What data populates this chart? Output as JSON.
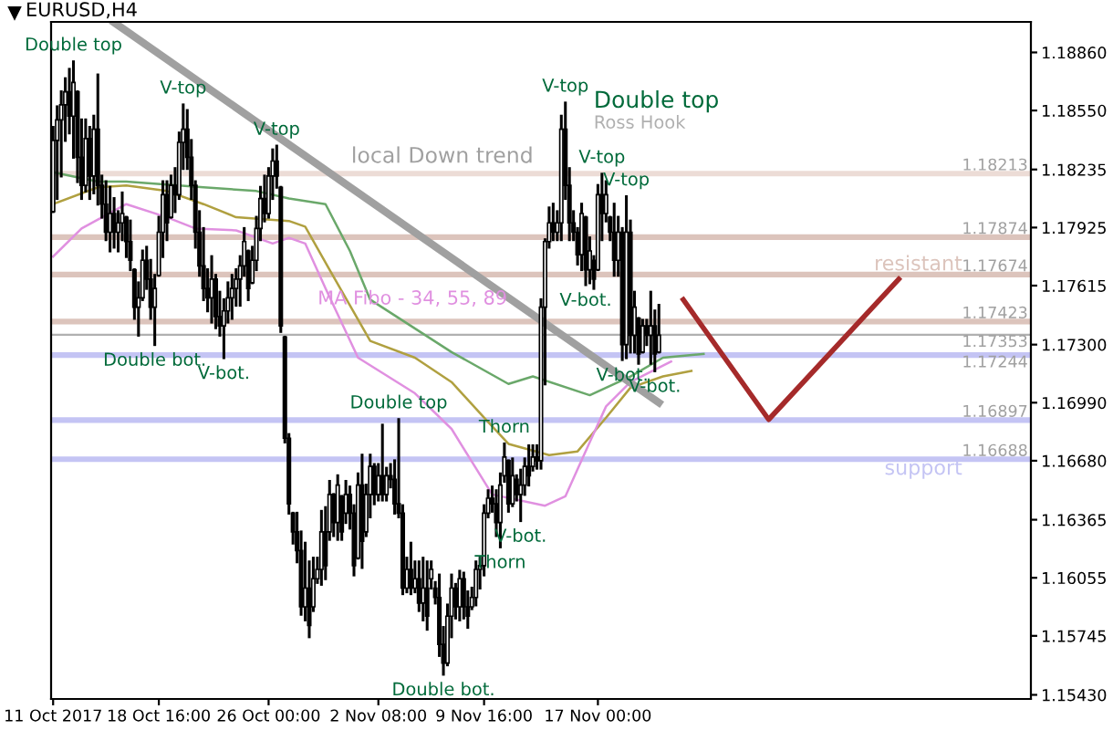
{
  "chart_data": {
    "type": "candlestick",
    "title": "EURUSD,H4",
    "categories": [
      "11 Oct 2017",
      null,
      null,
      null,
      null,
      null,
      null,
      null,
      null,
      null,
      null,
      null,
      null,
      null,
      null,
      null,
      null,
      null,
      null,
      null,
      null,
      null,
      null,
      null,
      null,
      null,
      "18 Oct 16:00",
      null,
      null,
      null,
      null,
      null,
      null,
      null,
      null,
      null,
      null,
      null,
      null,
      null,
      null,
      null,
      null,
      null,
      null,
      null,
      null,
      null,
      null,
      null,
      null,
      null,
      null,
      "26 Oct 00:00",
      null,
      null,
      null,
      null,
      null,
      null,
      null,
      null,
      null,
      null,
      null,
      null,
      null,
      null,
      null,
      null,
      null,
      null,
      null,
      null,
      null,
      null,
      null,
      null,
      null,
      null,
      "2 Nov 08:00",
      null,
      null,
      null,
      null,
      null,
      null,
      null,
      null,
      null,
      null,
      null,
      null,
      null,
      null,
      null,
      null,
      null,
      null,
      null,
      null,
      null,
      null,
      null,
      null,
      null,
      "9 Nov 16:00",
      null,
      null,
      null,
      null,
      null,
      null,
      null,
      null,
      null,
      null,
      null,
      null,
      null,
      null,
      null,
      null,
      null,
      null,
      null,
      null,
      null,
      null,
      null,
      null,
      null,
      null,
      null,
      "17 Nov 00:00",
      null,
      null,
      null,
      null,
      null,
      null,
      null,
      null,
      null,
      null,
      null,
      null,
      null,
      null,
      null,
      null,
      null,
      null,
      null,
      null,
      null,
      null,
      null,
      null,
      null,
      null,
      null,
      null,
      null,
      null,
      null,
      null,
      null,
      null,
      null,
      null,
      null,
      null,
      null,
      null,
      null,
      null,
      null,
      null,
      null,
      null,
      null,
      null,
      null,
      null,
      null,
      null,
      null,
      null,
      null,
      null,
      null,
      null,
      null,
      null,
      null,
      null,
      null,
      null,
      null,
      null,
      null,
      null,
      null,
      null,
      null,
      null,
      null,
      null,
      null,
      null,
      null,
      null,
      null,
      null,
      null,
      null,
      null,
      null,
      null,
      null,
      null,
      null,
      null,
      null,
      null,
      null,
      null,
      null,
      null,
      null,
      null,
      null,
      null,
      null,
      null,
      null,
      null,
      null,
      null,
      null
    ],
    "ohlc": [
      [
        1.1801,
        1.1846,
        1.1801,
        1.1839
      ],
      [
        1.1839,
        1.1857,
        1.1808,
        1.185
      ],
      [
        1.185,
        1.1865,
        1.182,
        1.1858
      ],
      [
        1.1858,
        1.1872,
        1.1839,
        1.1865
      ],
      [
        1.1865,
        1.1877,
        1.1843,
        1.1852
      ],
      [
        1.1852,
        1.1881,
        1.183,
        1.187
      ],
      [
        1.1865,
        1.1865,
        1.1817,
        1.183
      ],
      [
        1.183,
        1.185,
        1.1808,
        1.1815
      ],
      [
        1.1815,
        1.185,
        1.1812,
        1.184
      ],
      [
        1.184,
        1.1846,
        1.1808,
        1.182
      ],
      [
        1.182,
        1.1852,
        1.1811,
        1.1845
      ],
      [
        1.1845,
        1.1874,
        1.1805,
        1.1815
      ],
      [
        1.1815,
        1.182,
        1.1798,
        1.1805
      ],
      [
        1.1805,
        1.1817,
        1.1786,
        1.179
      ],
      [
        1.179,
        1.1814,
        1.178,
        1.18
      ],
      [
        1.18,
        1.1808,
        1.1782,
        1.179
      ],
      [
        1.179,
        1.1801,
        1.178,
        1.1795
      ],
      [
        1.1795,
        1.1811,
        1.1786,
        1.18
      ],
      [
        1.1798,
        1.1798,
        1.1777,
        1.1785
      ],
      [
        1.1785,
        1.1796,
        1.177,
        1.1775
      ],
      [
        1.177,
        1.177,
        1.1744,
        1.175
      ],
      [
        1.175,
        1.1763,
        1.1735,
        1.1755
      ],
      [
        1.1755,
        1.178,
        1.1754,
        1.1775
      ],
      [
        1.1775,
        1.1782,
        1.176,
        1.1765
      ],
      [
        1.1765,
        1.1775,
        1.1744,
        1.175
      ],
      [
        1.175,
        1.1767,
        1.173,
        1.176
      ],
      [
        1.1767,
        1.1798,
        1.1767,
        1.179
      ],
      [
        1.179,
        1.1817,
        1.1777,
        1.181
      ],
      [
        1.181,
        1.1817,
        1.1786,
        1.1795
      ],
      [
        1.1798,
        1.182,
        1.1798,
        1.1815
      ],
      [
        1.1815,
        1.1824,
        1.1801,
        1.181
      ],
      [
        1.181,
        1.1843,
        1.1808,
        1.1838
      ],
      [
        1.1838,
        1.1858,
        1.1824,
        1.1845
      ],
      [
        1.1845,
        1.1855,
        1.1824,
        1.183
      ],
      [
        1.183,
        1.1839,
        1.1808,
        1.1815
      ],
      [
        1.1815,
        1.1817,
        1.1782,
        1.179
      ],
      [
        1.179,
        1.1801,
        1.1767,
        1.1772
      ],
      [
        1.1772,
        1.1792,
        1.1754,
        1.176
      ],
      [
        1.176,
        1.177,
        1.1748,
        1.1755
      ],
      [
        1.1755,
        1.1777,
        1.1742,
        1.1765
      ],
      [
        1.1765,
        1.1767,
        1.1739,
        1.1745
      ],
      [
        1.1745,
        1.1758,
        1.1735,
        1.174
      ],
      [
        1.174,
        1.1754,
        1.1723,
        1.1748
      ],
      [
        1.1748,
        1.1763,
        1.1742,
        1.1755
      ],
      [
        1.1755,
        1.1767,
        1.1744,
        1.176
      ],
      [
        1.176,
        1.177,
        1.1751,
        1.1765
      ],
      [
        1.1765,
        1.1777,
        1.1751,
        1.1772
      ],
      [
        1.1772,
        1.1792,
        1.1767,
        1.1785
      ],
      [
        1.178,
        1.178,
        1.1754,
        1.176
      ],
      [
        1.1763,
        1.1782,
        1.1763,
        1.1775
      ],
      [
        1.1775,
        1.1798,
        1.177,
        1.1792
      ],
      [
        1.1792,
        1.1814,
        1.1786,
        1.1808
      ],
      [
        1.1808,
        1.182,
        1.1796,
        1.18
      ],
      [
        1.18,
        1.1824,
        1.1798,
        1.182
      ],
      [
        1.182,
        1.1834,
        1.1808,
        1.1828
      ],
      [
        1.1828,
        1.1836,
        1.1814,
        1.182
      ],
      [
        1.1814,
        1.1814,
        1.1737,
        1.174
      ],
      [
        1.1734,
        1.1734,
        1.1678,
        1.168
      ],
      [
        1.168,
        1.1682,
        1.164,
        1.1645
      ],
      [
        1.164,
        1.164,
        1.1624,
        1.163
      ],
      [
        1.163,
        1.164,
        1.1614,
        1.162
      ],
      [
        1.162,
        1.163,
        1.1586,
        1.159
      ],
      [
        1.159,
        1.1624,
        1.1583,
        1.16
      ],
      [
        1.16,
        1.1614,
        1.1574,
        1.158
      ],
      [
        1.159,
        1.1616,
        1.1588,
        1.1605
      ],
      [
        1.1605,
        1.1616,
        1.1603,
        1.161
      ],
      [
        1.161,
        1.1641,
        1.1602,
        1.163
      ],
      [
        1.163,
        1.1643,
        1.1605,
        1.1612
      ],
      [
        1.163,
        1.1657,
        1.1626,
        1.165
      ],
      [
        1.165,
        1.165,
        1.1628,
        1.1635
      ],
      [
        1.1635,
        1.166,
        1.1626,
        1.1655
      ],
      [
        1.1649,
        1.1649,
        1.1626,
        1.163
      ],
      [
        1.164,
        1.1657,
        1.1635,
        1.165
      ],
      [
        1.165,
        1.1654,
        1.1632,
        1.164
      ],
      [
        1.164,
        1.1644,
        1.1607,
        1.1612
      ],
      [
        1.1616,
        1.1661,
        1.1616,
        1.1655
      ],
      [
        1.1655,
        1.1671,
        1.1611,
        1.1625
      ],
      [
        1.163,
        1.1655,
        1.1628,
        1.165
      ],
      [
        1.165,
        1.1671,
        1.1638,
        1.1665
      ],
      [
        1.1665,
        1.1666,
        1.1645,
        1.165
      ],
      [
        1.165,
        1.1666,
        1.1647,
        1.166
      ],
      [
        1.166,
        1.1687,
        1.1647,
        1.165
      ],
      [
        1.165,
        1.1664,
        1.1647,
        1.166
      ],
      [
        1.166,
        1.1666,
        1.1654,
        1.1658
      ],
      [
        1.1658,
        1.1668,
        1.164,
        1.1645
      ],
      [
        1.1645,
        1.169,
        1.1638,
        1.164
      ],
      [
        1.164,
        1.1644,
        1.1597,
        1.16
      ],
      [
        1.16,
        1.1616,
        1.1598,
        1.161
      ],
      [
        1.161,
        1.1624,
        1.1597,
        1.16
      ],
      [
        1.16,
        1.1614,
        1.1598,
        1.1605
      ],
      [
        1.1605,
        1.1614,
        1.1588,
        1.1592
      ],
      [
        1.1592,
        1.1616,
        1.1583,
        1.16
      ],
      [
        1.16,
        1.1614,
        1.1578,
        1.1585
      ],
      [
        1.1605,
        1.1614,
        1.16,
        1.161
      ],
      [
        1.16,
        1.1603,
        1.1592,
        1.1595
      ],
      [
        1.1595,
        1.1607,
        1.1564,
        1.157
      ],
      [
        1.157,
        1.1579,
        1.1554,
        1.156
      ],
      [
        1.156,
        1.1591,
        1.1559,
        1.1585
      ],
      [
        1.1585,
        1.1607,
        1.1574,
        1.16
      ],
      [
        1.16,
        1.1602,
        1.1584,
        1.159
      ],
      [
        1.159,
        1.1609,
        1.1583,
        1.1605
      ],
      [
        1.1605,
        1.1608,
        1.1584,
        1.159
      ],
      [
        1.159,
        1.1598,
        1.1579,
        1.1585
      ],
      [
        1.159,
        1.16,
        1.1589,
        1.1595
      ],
      [
        1.1595,
        1.1614,
        1.1591,
        1.161
      ],
      [
        1.161,
        1.1616,
        1.16,
        1.1612
      ],
      [
        1.1612,
        1.1644,
        1.1607,
        1.164
      ],
      [
        1.164,
        1.1652,
        1.1638,
        1.1648
      ],
      [
        1.1648,
        1.1654,
        1.1641,
        1.1645
      ],
      [
        1.1645,
        1.1652,
        1.1628,
        1.1635
      ],
      [
        1.1635,
        1.1661,
        1.1622,
        1.1655
      ],
      [
        1.166,
        1.1677,
        1.1657,
        1.167
      ],
      [
        1.1668,
        1.1668,
        1.1641,
        1.1645
      ],
      [
        1.1645,
        1.1669,
        1.1644,
        1.166
      ],
      [
        1.1658,
        1.166,
        1.1647,
        1.165
      ],
      [
        1.165,
        1.1663,
        1.1636,
        1.1655
      ],
      [
        1.1655,
        1.1669,
        1.165,
        1.1665
      ],
      [
        1.1665,
        1.1676,
        1.1655,
        1.166
      ],
      [
        1.1665,
        1.1676,
        1.1663,
        1.167
      ],
      [
        1.167,
        1.1676,
        1.1664,
        1.1668
      ],
      [
        1.1668,
        1.1754,
        1.1664,
        1.175
      ],
      [
        1.175,
        1.1786,
        1.1709,
        1.1785
      ],
      [
        1.1785,
        1.1803,
        1.1782,
        1.1795
      ],
      [
        1.1795,
        1.1805,
        1.1786,
        1.179
      ],
      [
        1.179,
        1.1801,
        1.1786,
        1.1795
      ],
      [
        1.1795,
        1.1852,
        1.1786,
        1.1845
      ],
      [
        1.1845,
        1.1859,
        1.1808,
        1.1815
      ],
      [
        1.1815,
        1.1824,
        1.1786,
        1.1795
      ],
      [
        1.1795,
        1.1801,
        1.1786,
        1.179
      ],
      [
        1.179,
        1.1792,
        1.1773,
        1.1778
      ],
      [
        1.1778,
        1.1805,
        1.177,
        1.18
      ],
      [
        1.1798,
        1.1798,
        1.1762,
        1.177
      ],
      [
        1.177,
        1.1787,
        1.1763,
        1.178
      ],
      [
        1.1775,
        1.1777,
        1.176,
        1.1765
      ],
      [
        1.177,
        1.1815,
        1.177,
        1.181
      ],
      [
        1.181,
        1.1821,
        1.1786,
        1.18
      ],
      [
        1.18,
        1.1817,
        1.1796,
        1.181
      ],
      [
        1.1798,
        1.1798,
        1.1786,
        1.179
      ],
      [
        1.179,
        1.1805,
        1.1767,
        1.1775
      ],
      [
        1.1775,
        1.1798,
        1.1767,
        1.179
      ],
      [
        1.179,
        1.1792,
        1.1722,
        1.173
      ],
      [
        1.173,
        1.1809,
        1.1723,
        1.179
      ],
      [
        1.179,
        1.1796,
        1.1726,
        1.1735
      ],
      [
        1.1735,
        1.1758,
        1.1726,
        1.175
      ],
      [
        1.1744,
        1.1744,
        1.172,
        1.1725
      ],
      [
        1.1726,
        1.1743,
        1.1726,
        1.174
      ],
      [
        1.174,
        1.1743,
        1.173,
        1.1735
      ],
      [
        1.1735,
        1.1758,
        1.172,
        1.174
      ],
      [
        1.174,
        1.1748,
        1.1716,
        1.1725
      ],
      [
        1.1726,
        1.1751,
        1.1726,
        1.1735
      ],
      null,
      null,
      null,
      null,
      null,
      null,
      null,
      null,
      null,
      null,
      null,
      null,
      null,
      null,
      null,
      null,
      null,
      null,
      null,
      null,
      null,
      null,
      null,
      null,
      null,
      null,
      null,
      null,
      null,
      null,
      null,
      null,
      null,
      null,
      null,
      null,
      null,
      null,
      null,
      null,
      null,
      null,
      null,
      null,
      null,
      null,
      null,
      null,
      null,
      null,
      null,
      null,
      null,
      null,
      null,
      null,
      null,
      null,
      null,
      null,
      null,
      null,
      null,
      null,
      null,
      null,
      null,
      null,
      null,
      null,
      null,
      null,
      null,
      null,
      null,
      null,
      null,
      null,
      null,
      null,
      null,
      null,
      null,
      null,
      null,
      null,
      null,
      null,
      null,
      null,
      null
    ],
    "series": [
      {
        "type": "line",
        "color": "#6aa86a",
        "values": [
          1.1822,
          null,
          null,
          null,
          null,
          null,
          null,
          null,
          null,
          null,
          null,
          1.1817,
          null,
          null,
          null,
          null,
          null,
          null,
          1.1817,
          null,
          null,
          null,
          null,
          null,
          null,
          null,
          null,
          null,
          null,
          null,
          null,
          null,
          null,
          null,
          null,
          null,
          null,
          1.1814,
          null,
          null,
          null,
          null,
          null,
          null,
          null,
          null,
          null,
          null,
          null,
          null,
          1.1812,
          null,
          null,
          null,
          null,
          null,
          null,
          null,
          1.1808,
          null,
          null,
          null,
          null,
          null,
          null,
          null,
          null,
          1.1805,
          null,
          null,
          null,
          null,
          null,
          1.178,
          null,
          null,
          null,
          null,
          1.1754,
          null,
          null,
          null,
          null,
          null,
          null,
          null,
          null,
          null,
          null,
          null,
          null,
          null,
          null,
          null,
          null,
          null,
          null,
          null,
          1.1726,
          null,
          null,
          null,
          null,
          null,
          null,
          null,
          null,
          null,
          null,
          null,
          null,
          null,
          1.1709,
          null,
          null,
          null,
          null,
          null,
          1.1713,
          null,
          null,
          null,
          null,
          null,
          null,
          null,
          null,
          null,
          null,
          null,
          null,
          null,
          1.1703,
          null,
          null,
          null,
          null,
          null,
          null,
          null,
          null,
          null,
          1.1713,
          null,
          null,
          null,
          null,
          null,
          null,
          null,
          1.1723,
          null,
          null,
          null,
          null,
          null,
          null,
          null,
          null,
          null,
          1.1725,
          null,
          null,
          null,
          null,
          null,
          null,
          null,
          null,
          null,
          null,
          null,
          null,
          null,
          null,
          null,
          null,
          null,
          null,
          null,
          null,
          null,
          null,
          null,
          null,
          null,
          null,
          null,
          null,
          null,
          null,
          null,
          null,
          null,
          null,
          null,
          null,
          null,
          null,
          null,
          null,
          null,
          null,
          null,
          null,
          null,
          null,
          null,
          null,
          null,
          null,
          null,
          null,
          null,
          null,
          null,
          null,
          null,
          null,
          null,
          null,
          null,
          null,
          null,
          null,
          null,
          null,
          null,
          null,
          null,
          null,
          null,
          null,
          null,
          null,
          null,
          null,
          null,
          null,
          null,
          null
        ]
      },
      {
        "type": "line",
        "color": "#b0a040",
        "values": [
          1.1805,
          null,
          null,
          null,
          null,
          null,
          null,
          null,
          null,
          null,
          null,
          1.1814,
          null,
          null,
          null,
          null,
          null,
          null,
          1.1815,
          null,
          null,
          null,
          null,
          null,
          null,
          null,
          null,
          null,
          1.1812,
          null,
          null,
          null,
          null,
          null,
          null,
          null,
          null,
          1.1805,
          null,
          null,
          null,
          null,
          null,
          null,
          null,
          1.1798,
          null,
          null,
          null,
          null,
          null,
          null,
          null,
          null,
          null,
          null,
          null,
          null,
          1.1796,
          null,
          null,
          null,
          1.1793,
          null,
          null,
          null,
          null,
          null,
          1.177,
          null,
          null,
          null,
          null,
          null,
          null,
          null,
          null,
          null,
          1.1732,
          null,
          null,
          null,
          null,
          null,
          null,
          null,
          null,
          null,
          null,
          1.1723,
          null,
          null,
          null,
          null,
          null,
          null,
          null,
          null,
          1.171,
          null,
          null,
          null,
          null,
          null,
          null,
          null,
          1.1691,
          null,
          null,
          null,
          null,
          null,
          1.1677,
          null,
          null,
          null,
          null,
          null,
          null,
          null,
          null,
          null,
          1.1671,
          null,
          null,
          null,
          null,
          null,
          null,
          1.1673,
          null,
          null,
          null,
          null,
          null,
          null,
          1.1691,
          null,
          null,
          null,
          null,
          null,
          1.1707,
          null,
          null,
          null,
          null,
          null,
          null,
          null,
          1.1713,
          null,
          null,
          null,
          null,
          null,
          null,
          1.1716,
          null,
          null,
          null,
          null,
          null,
          null,
          null,
          null,
          null,
          null,
          null,
          null,
          null,
          null,
          null,
          null,
          null,
          null,
          null,
          null,
          null,
          null,
          null,
          null,
          null,
          null,
          null,
          null,
          null,
          null,
          null,
          null,
          null,
          null,
          null,
          null,
          null,
          null,
          null,
          null,
          null,
          null,
          null,
          null,
          null,
          null,
          null,
          null,
          null,
          null,
          null,
          null,
          null,
          null,
          null,
          null,
          null,
          null,
          null,
          null,
          null,
          null,
          null,
          null,
          null,
          null,
          null,
          null,
          null,
          null,
          null,
          null,
          null,
          null,
          null,
          null,
          null,
          null,
          null,
          null,
          null,
          null,
          null
        ]
      },
      {
        "type": "line",
        "name": "MA Fibo - 34, 55, 89",
        "color": "#e090e0",
        "values": [
          1.1777,
          null,
          null,
          null,
          null,
          null,
          null,
          1.1792,
          null,
          null,
          null,
          null,
          null,
          null,
          null,
          null,
          null,
          null,
          1.1805,
          null,
          null,
          null,
          null,
          null,
          null,
          null,
          null,
          null,
          1.1798,
          null,
          null,
          null,
          null,
          null,
          null,
          1.1792,
          null,
          null,
          null,
          null,
          null,
          null,
          null,
          null,
          null,
          1.1791,
          null,
          null,
          null,
          null,
          null,
          null,
          null,
          null,
          1.1784,
          null,
          null,
          null,
          1.1787,
          null,
          null,
          null,
          1.1784,
          null,
          null,
          null,
          null,
          1.176,
          null,
          null,
          null,
          null,
          null,
          null,
          null,
          1.1723,
          null,
          null,
          null,
          null,
          null,
          null,
          null,
          null,
          null,
          null,
          null,
          null,
          null,
          1.1704,
          null,
          null,
          null,
          null,
          null,
          null,
          null,
          null,
          1.1685,
          null,
          null,
          null,
          null,
          null,
          null,
          null,
          null,
          null,
          1.165,
          null,
          null,
          null,
          null,
          null,
          null,
          null,
          null,
          null,
          null,
          null,
          null,
          1.1644,
          null,
          null,
          null,
          null,
          1.1649,
          null,
          null,
          null,
          null,
          null,
          1.1678,
          null,
          null,
          null,
          1.1697,
          null,
          null,
          null,
          null,
          null,
          1.171,
          null,
          null,
          null,
          null,
          null,
          null,
          null,
          null,
          null,
          1.1721,
          null,
          null,
          null,
          null,
          null,
          null,
          null,
          null,
          null,
          null,
          null,
          null,
          null,
          null,
          null,
          null,
          null,
          null,
          null,
          null,
          null,
          null,
          null,
          null,
          null,
          null,
          null,
          null,
          null,
          null,
          null,
          null,
          null,
          null,
          null,
          null,
          null,
          null,
          null,
          null,
          null,
          null,
          null,
          null,
          null,
          null,
          null,
          null,
          null,
          null,
          null,
          null,
          null,
          null,
          null,
          null,
          null,
          null,
          null,
          null,
          null,
          null,
          null,
          null,
          null,
          null,
          null,
          null,
          null,
          null,
          null,
          null,
          null,
          null,
          null,
          null,
          null,
          null,
          null,
          null,
          null,
          null,
          null,
          null,
          null,
          null,
          null,
          null
        ]
      },
      {
        "type": "line",
        "name": "local Down trend",
        "color": "#a0a0a0",
        "values": [
          null,
          null,
          null,
          null,
          null,
          null,
          null,
          null,
          null,
          null,
          null,
          null,
          null,
          null,
          null,
          1.1902,
          null,
          null,
          null,
          null,
          null,
          null,
          null,
          null,
          null,
          null,
          null,
          null,
          null,
          null,
          null,
          null,
          null,
          null,
          null,
          null,
          null,
          null,
          null,
          null,
          null,
          null,
          null,
          null,
          null,
          null,
          null,
          null,
          null,
          null,
          null,
          null,
          null,
          null,
          null,
          null,
          null,
          null,
          null,
          null,
          null,
          null,
          null,
          null,
          null,
          null,
          null,
          null,
          null,
          null,
          null,
          null,
          null,
          null,
          null,
          null,
          null,
          null,
          null,
          null,
          null,
          null,
          null,
          null,
          null,
          null,
          null,
          null,
          null,
          null,
          null,
          null,
          null,
          null,
          null,
          null,
          null,
          null,
          null,
          null,
          null,
          null,
          null,
          null,
          null,
          null,
          null,
          null,
          null,
          null,
          null,
          null,
          null,
          null,
          null,
          null,
          null,
          null,
          null,
          null,
          null,
          null,
          null,
          null,
          null,
          null,
          null,
          null,
          null,
          null,
          null,
          null,
          null,
          null,
          null,
          null,
          null,
          null,
          null,
          null,
          null,
          null,
          null,
          null,
          null,
          null,
          null,
          null,
          null,
          1.1699,
          null,
          null,
          null,
          null,
          null,
          null,
          null,
          null,
          null,
          null,
          null,
          null,
          null,
          null,
          null,
          null,
          null,
          null,
          null,
          null,
          null,
          null,
          null,
          null,
          null,
          null,
          null,
          null,
          null,
          null,
          null,
          null,
          null,
          null,
          null,
          null,
          null,
          null,
          null,
          null,
          null,
          null,
          null,
          null,
          null,
          null,
          null,
          null,
          null,
          null,
          null,
          null,
          null,
          null,
          null,
          null,
          null,
          null,
          null,
          null,
          null,
          null,
          null,
          null,
          null,
          null,
          null,
          null,
          null,
          null,
          null,
          null,
          null,
          null,
          null,
          null,
          null,
          null,
          null,
          null,
          null,
          null,
          null,
          null,
          null,
          null,
          null,
          null,
          null,
          null,
          null
        ]
      },
      {
        "type": "line",
        "color": "#a52a2a",
        "values": [
          null,
          null,
          null,
          null,
          null,
          null,
          null,
          null,
          null,
          null,
          null,
          null,
          null,
          null,
          null,
          null,
          null,
          null,
          null,
          null,
          null,
          null,
          null,
          null,
          null,
          null,
          null,
          null,
          null,
          null,
          null,
          null,
          null,
          null,
          null,
          null,
          null,
          null,
          null,
          null,
          null,
          null,
          null,
          null,
          null,
          null,
          null,
          null,
          null,
          null,
          null,
          null,
          null,
          null,
          null,
          null,
          null,
          null,
          null,
          null,
          null,
          null,
          null,
          null,
          null,
          null,
          null,
          null,
          null,
          null,
          null,
          null,
          null,
          null,
          null,
          null,
          null,
          null,
          null,
          null,
          null,
          null,
          null,
          null,
          null,
          null,
          null,
          null,
          null,
          null,
          null,
          null,
          null,
          null,
          null,
          null,
          null,
          null,
          null,
          null,
          null,
          null,
          null,
          null,
          null,
          null,
          null,
          null,
          null,
          null,
          null,
          null,
          null,
          null,
          null,
          null,
          null,
          null,
          null,
          null,
          null,
          null,
          null,
          null,
          null,
          null,
          null,
          null,
          null,
          null,
          null,
          null,
          null,
          null,
          null,
          null,
          null,
          null,
          null,
          null,
          null,
          null,
          null,
          null,
          null,
          null,
          null,
          null,
          null,
          null,
          null,
          null,
          null,
          null,
          null,
          1.1754,
          null,
          null,
          null,
          null,
          null,
          null,
          null,
          null,
          null,
          null,
          null,
          null,
          null,
          null,
          null,
          null,
          null,
          null,
          null,
          null,
          1.169,
          null,
          null,
          null,
          null,
          null,
          null,
          null,
          null,
          null,
          null,
          null,
          null,
          null,
          null,
          null,
          null,
          null,
          null,
          null,
          null,
          null,
          null,
          null,
          null,
          null,
          null,
          null,
          null,
          null,
          null,
          null,
          1.1765,
          null,
          null,
          null,
          null,
          null,
          null,
          null,
          null,
          null,
          null,
          null,
          null,
          null,
          null,
          null,
          null,
          null,
          null,
          null,
          null,
          null,
          null,
          null,
          null,
          null,
          null,
          null,
          null,
          null,
          null,
          null,
          null
        ]
      }
    ],
    "ylim": [
      1.15408,
      1.19023
    ],
    "yticks": [
      {
        "value": 1.1886,
        "label": "1.18860"
      },
      {
        "value": 1.1855,
        "label": "1.18550"
      },
      {
        "value": 1.18235,
        "label": "1.18235"
      },
      {
        "value": 1.17925,
        "label": "1.17925"
      },
      {
        "value": 1.17615,
        "label": "1.17615"
      },
      {
        "value": 1.173,
        "label": "1.17300"
      },
      {
        "value": 1.1699,
        "label": "1.16990"
      },
      {
        "value": 1.1668,
        "label": "1.16680"
      },
      {
        "value": 1.16365,
        "label": "1.16365"
      },
      {
        "value": 1.16055,
        "label": "1.16055"
      },
      {
        "value": 1.15745,
        "label": "1.15745"
      },
      {
        "value": 1.1543,
        "label": "1.15430"
      }
    ],
    "ref_lines": [
      {
        "axis": "y",
        "value": 1.18213,
        "label": "1.18213",
        "color": "#ecdcd6"
      },
      {
        "axis": "y",
        "value": 1.17874,
        "label": "1.17874",
        "color": "#dcc4bc"
      },
      {
        "axis": "y",
        "value": 1.17674,
        "label": "1.17674",
        "color": "#dcc4bc"
      },
      {
        "axis": "y",
        "value": 1.17423,
        "label": "1.17423",
        "color": "#dcc4bc"
      },
      {
        "axis": "y",
        "value": 1.17353,
        "label": "1.17353",
        "color": "#b0b0b0"
      },
      {
        "axis": "y",
        "value": 1.17244,
        "label": "1.17244",
        "color": "#c4c4f4"
      },
      {
        "axis": "y",
        "value": 1.16897,
        "label": "1.16897",
        "color": "#c4c4f4"
      },
      {
        "axis": "y",
        "value": 1.16688,
        "label": "1.16688",
        "color": "#c4c4f4"
      }
    ],
    "annotations": [
      {
        "text": "Double top",
        "y": 1.1881
      },
      {
        "text": "V-top",
        "y": 1.1858
      },
      {
        "text": "V-top",
        "y": 1.1836
      },
      {
        "text": "Double bot.",
        "y": 1.173
      },
      {
        "text": "V-bot.",
        "y": 1.1723
      },
      {
        "text": "Double top",
        "y": 1.169
      },
      {
        "text": "Thorn",
        "y": 1.1677
      },
      {
        "text": "Thorn",
        "y": 1.1622
      },
      {
        "text": "V-bot.",
        "y": 1.1636
      },
      {
        "text": "Double bot.",
        "y": 1.1554
      },
      {
        "text": "V-top",
        "y": 1.1859
      },
      "Double top",
      "Ross Hook",
      {
        "text": "V-top",
        "y": 1.1821
      },
      {
        "text": "V-top",
        "y": 1.1809
      },
      {
        "text": "V-bot.",
        "y": 1.1762
      },
      {
        "text": "V-bot.",
        "y": 1.1722
      },
      {
        "text": "V-bot.",
        "y": 1.1716
      },
      {
        "text": "resistant",
        "y": 1.17674
      },
      {
        "text": "support",
        "y": 1.16688
      }
    ]
  }
}
